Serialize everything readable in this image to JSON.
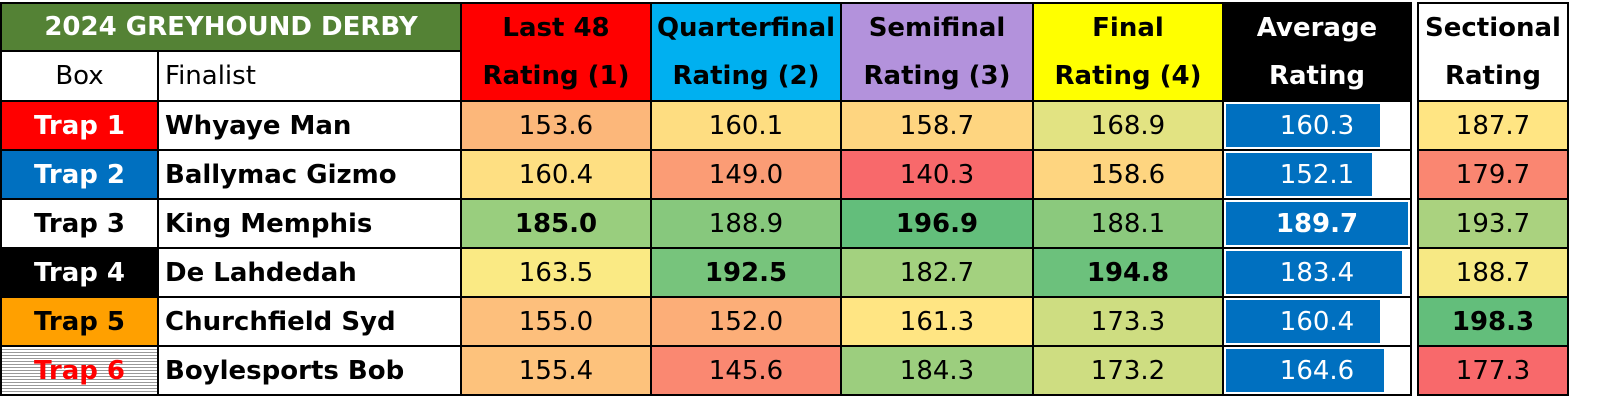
{
  "title": "2024 GREYHOUND DERBY",
  "headers": {
    "box": "Box",
    "finalist": "Finalist",
    "ratings": [
      [
        "Last 48",
        "Rating (1)"
      ],
      [
        "Quarterfinal",
        "Rating (2)"
      ],
      [
        "Semifinal",
        "Rating (3)"
      ],
      [
        "Final",
        "Rating (4)"
      ]
    ],
    "average": [
      "Average",
      "Rating"
    ],
    "sectional": [
      "Sectional",
      "Rating"
    ]
  },
  "rows": [
    {
      "box": "Trap 1",
      "finalist": "Whyaye Man",
      "ratings": [
        "153.6",
        "160.1",
        "158.7",
        "168.9"
      ],
      "average": "160.3",
      "sectional": "187.7"
    },
    {
      "box": "Trap 2",
      "finalist": "Ballymac Gizmo",
      "ratings": [
        "160.4",
        "149.0",
        "140.3",
        "158.6"
      ],
      "average": "152.1",
      "sectional": "179.7"
    },
    {
      "box": "Trap 3",
      "finalist": "King Memphis",
      "ratings": [
        "185.0",
        "188.9",
        "196.9",
        "188.1"
      ],
      "average": "189.7",
      "sectional": "193.7"
    },
    {
      "box": "Trap 4",
      "finalist": "De Lahdedah",
      "ratings": [
        "163.5",
        "192.5",
        "182.7",
        "194.8"
      ],
      "average": "183.4",
      "sectional": "188.7"
    },
    {
      "box": "Trap 5",
      "finalist": "Churchfield Syd",
      "ratings": [
        "155.0",
        "152.0",
        "161.3",
        "173.3"
      ],
      "average": "160.4",
      "sectional": "198.3"
    },
    {
      "box": "Trap 6",
      "finalist": "Boylesports Bob",
      "ratings": [
        "155.4",
        "145.6",
        "184.3",
        "173.2"
      ],
      "average": "164.6",
      "sectional": "177.3"
    }
  ]
}
